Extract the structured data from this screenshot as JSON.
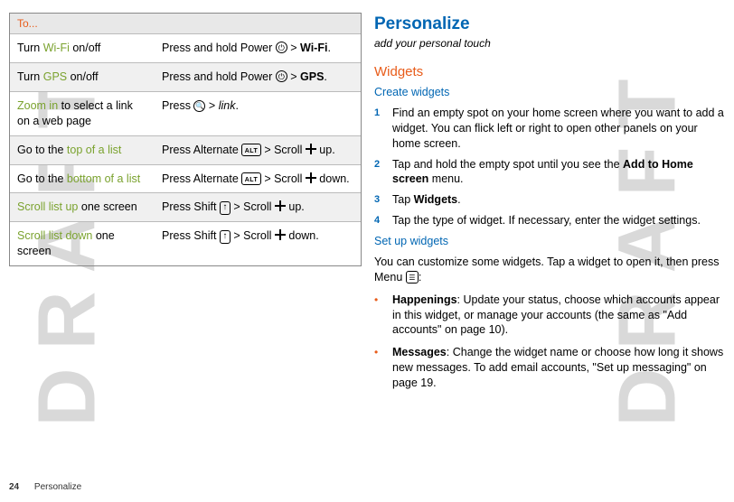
{
  "watermark": "DRAFT",
  "left": {
    "tableHeader": "To...",
    "rows": [
      {
        "shade": false,
        "c1_a": "Turn ",
        "c1_b": "Wi-Fi",
        "c1_c": " on/off",
        "c2_a": "Press and hold Power ",
        "c2_key": "power",
        "c2_b": " > ",
        "c2_bold": "Wi-Fi",
        "c2_c": "."
      },
      {
        "shade": true,
        "c1_a": "Turn ",
        "c1_b": "GPS",
        "c1_c": " on/off",
        "c2_a": "Press and hold Power ",
        "c2_key": "power",
        "c2_b": " > ",
        "c2_bold": "GPS",
        "c2_c": "."
      },
      {
        "shade": false,
        "c1_a": "",
        "c1_b": "Zoom in",
        "c1_c": " to select a link on a web page",
        "c2_a": "Press ",
        "c2_key": "search",
        "c2_b": " > ",
        "c2_ital": "link",
        "c2_c": "."
      },
      {
        "shade": true,
        "c1_a": "Go to the ",
        "c1_b": "top of a list",
        "c1_c": "",
        "c2_a": "Press Alternate ",
        "c2_key": "alt",
        "c2_b": " > Scroll ",
        "c2_dpad": true,
        "c2_c": " up."
      },
      {
        "shade": false,
        "c1_a": "Go to the ",
        "c1_b": "bottom of a list",
        "c1_c": "",
        "c2_a": "Press Alternate ",
        "c2_key": "alt",
        "c2_b": " > Scroll ",
        "c2_dpad": true,
        "c2_c": " down."
      },
      {
        "shade": true,
        "c1_a": "",
        "c1_b": "Scroll list up",
        "c1_c": " one screen",
        "c2_a": "Press Shift ",
        "c2_key": "arrowup",
        "c2_b": " > Scroll ",
        "c2_dpad": true,
        "c2_c": " up."
      },
      {
        "shade": false,
        "c1_a": "",
        "c1_b": "Scroll list down",
        "c1_c": " one screen",
        "c2_a": "Press Shift ",
        "c2_key": "arrowup",
        "c2_b": " > Scroll ",
        "c2_dpad": true,
        "c2_c": " down."
      }
    ]
  },
  "right": {
    "h1": "Personalize",
    "subtitle": "add your personal touch",
    "h2_widgets": "Widgets",
    "h3_create": "Create widgets",
    "steps": [
      "Find an empty spot on your home screen where you want to add a widget. You can flick left or right to open other panels on your home screen.",
      "Tap and hold the empty spot until you see the |Add to Home screen| menu.",
      "Tap |Widgets|.",
      "Tap the type of widget. If necessary, enter the widget settings."
    ],
    "h3_setup": "Set up widgets",
    "setup_para_a": "You can customize some widgets. Tap a widget to open it, then press Menu ",
    "setup_para_b": ":",
    "bullets": [
      "|Happenings|: Update your status, choose which accounts appear in this widget, or manage your accounts (the same as \"Add accounts\" on page 10).",
      "|Messages|: Change the widget name or choose how long it shows new messages. To add email accounts, \"Set up messaging\" on page 19."
    ]
  },
  "footer": {
    "page": "24",
    "section": "Personalize"
  },
  "colors": {
    "blue": "#0066b3",
    "orange": "#e85c1a",
    "green": "#7aa22e",
    "watermark": "#d9d9d9",
    "rowShade": "#f0f0f0"
  }
}
